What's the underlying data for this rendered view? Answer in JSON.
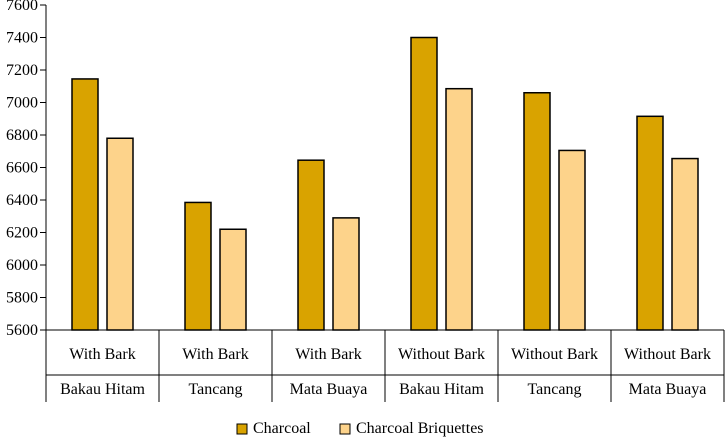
{
  "chart_data": {
    "type": "bar",
    "title": "",
    "xlabel": "",
    "ylabel": "",
    "ylim": [
      5600,
      7600
    ],
    "yticks": [
      5600,
      5800,
      6000,
      6200,
      6400,
      6600,
      6800,
      7000,
      7200,
      7400,
      7600
    ],
    "grid": false,
    "legend_position": "bottom",
    "categories": [
      {
        "condition": "With Bark",
        "species": "Bakau Hitam"
      },
      {
        "condition": "With Bark",
        "species": "Tancang"
      },
      {
        "condition": "With Bark",
        "species": "Mata Buaya"
      },
      {
        "condition": "Without Bark",
        "species": "Bakau Hitam"
      },
      {
        "condition": "Without Bark",
        "species": "Tancang"
      },
      {
        "condition": "Without Bark",
        "species": "Mata Buaya"
      }
    ],
    "series": [
      {
        "name": "Charcoal",
        "color": "#d9a300",
        "values": [
          7145,
          6385,
          6645,
          7400,
          7060,
          6915
        ]
      },
      {
        "name": "Charcoal Briquettes",
        "color": "#fdd38b",
        "values": [
          6780,
          6220,
          6290,
          7085,
          6705,
          6655
        ]
      }
    ]
  }
}
